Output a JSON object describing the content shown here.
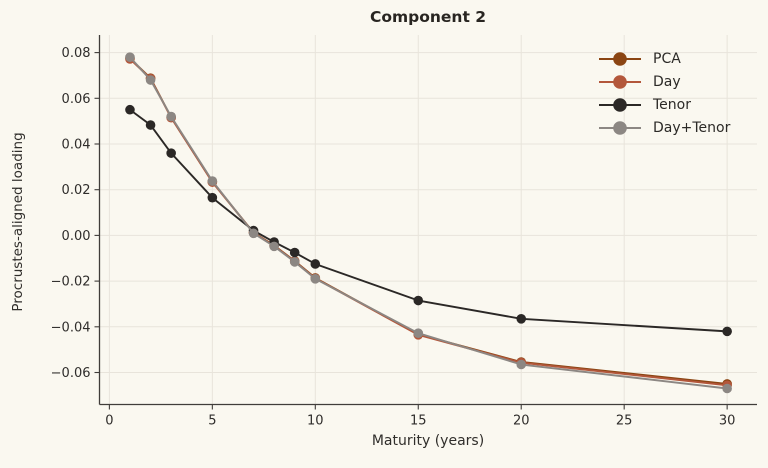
{
  "chart_data": {
    "type": "line",
    "title": "Component 2",
    "xlabel": "Maturity (years)",
    "ylabel": "Procrustes-aligned loading",
    "x": [
      1,
      2,
      3,
      5,
      7,
      8,
      9,
      10,
      15,
      20,
      30
    ],
    "series": [
      {
        "name": "PCA",
        "color": "#8b4513",
        "values": [
          0.0775,
          0.0688,
          0.0517,
          0.0235,
          0.0012,
          -0.0044,
          -0.0112,
          -0.0186,
          -0.0433,
          -0.0554,
          -0.065
        ]
      },
      {
        "name": "Day",
        "color": "#b3573b",
        "values": [
          0.0772,
          0.0686,
          0.0515,
          0.0233,
          0.0011,
          -0.0046,
          -0.0114,
          -0.0188,
          -0.0435,
          -0.0557,
          -0.0656
        ]
      },
      {
        "name": "Tenor",
        "color": "#2b2826",
        "values": [
          0.055,
          0.0483,
          0.036,
          0.0165,
          0.0021,
          -0.0029,
          -0.0075,
          -0.0125,
          -0.0285,
          -0.0365,
          -0.042
        ]
      },
      {
        "name": "Day+Tenor",
        "color": "#8c8783",
        "values": [
          0.078,
          0.068,
          0.052,
          0.0238,
          0.0009,
          -0.0048,
          -0.0116,
          -0.019,
          -0.0428,
          -0.0565,
          -0.067
        ]
      }
    ],
    "xlim": [
      -0.48,
      31.45
    ],
    "ylim": [
      -0.074,
      0.0877
    ],
    "xticks": {
      "values": [
        0,
        5,
        10,
        15,
        20,
        25,
        30
      ],
      "labels": [
        "0",
        "5",
        "10",
        "15",
        "20",
        "25",
        "30"
      ]
    },
    "yticks": {
      "values": [
        0.08,
        0.06,
        0.04,
        0.02,
        0.0,
        -0.02,
        -0.04,
        -0.06
      ],
      "labels": [
        "0.08",
        "0.06",
        "0.04",
        "0.02",
        "0.00",
        "−0.02",
        "−0.04",
        "−0.06"
      ]
    },
    "grid": true,
    "legend_position": "upper right",
    "colors": {
      "background": "#faf8f0",
      "grid": "#e8e4db",
      "spine": "#403d3a",
      "text": "#2f2d2b"
    }
  }
}
